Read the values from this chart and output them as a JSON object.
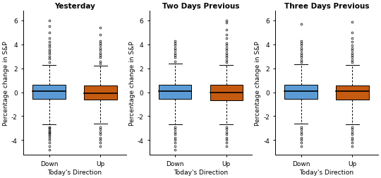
{
  "titles": [
    "Yesterday",
    "Two Days Previous",
    "Three Days Previous"
  ],
  "xlabel": "Today's Direction",
  "ylabel": "Percentage change in S&P",
  "categories": [
    "Down",
    "Up"
  ],
  "colors": [
    "#5B9BD5",
    "#C55A11"
  ],
  "ylim": [
    -5.2,
    6.8
  ],
  "yticks": [
    -4,
    -2,
    0,
    2,
    4,
    6
  ],
  "panels": [
    {
      "down": {
        "median": 0.1,
        "q1": -0.55,
        "q3": 0.65,
        "whisker_low": -2.65,
        "whisker_high": 2.3,
        "outliers_low": [
          -4.8,
          -4.5,
          -4.2,
          -4.0,
          -3.8,
          -3.6,
          -3.5,
          -3.4,
          -3.3,
          -3.2,
          -3.1,
          -3.0,
          -2.9
        ],
        "outliers_high": [
          2.5,
          2.8,
          3.0,
          3.2,
          3.4,
          3.6,
          3.8,
          4.0,
          4.2,
          4.5,
          5.0,
          5.5,
          6.0
        ]
      },
      "up": {
        "median": -0.1,
        "q1": -0.6,
        "q3": 0.55,
        "whisker_low": -2.6,
        "whisker_high": 2.2,
        "outliers_low": [
          -4.5,
          -4.2,
          -4.0,
          -3.8,
          -3.5,
          -3.3,
          -3.1,
          -2.9
        ],
        "outliers_high": [
          2.4,
          2.6,
          2.9,
          3.1,
          3.3,
          3.5,
          3.7,
          3.9,
          4.1,
          4.3,
          4.8,
          5.4
        ]
      }
    },
    {
      "down": {
        "median": 0.1,
        "q1": -0.55,
        "q3": 0.65,
        "whisker_low": -2.65,
        "whisker_high": 2.4,
        "outliers_low": [
          -4.8,
          -4.5,
          -4.2,
          -4.0,
          -3.8,
          -3.5,
          -3.3,
          -3.1,
          -2.9
        ],
        "outliers_high": [
          2.6,
          2.9,
          3.1,
          3.3,
          3.5,
          3.7,
          3.9,
          4.1,
          4.3
        ]
      },
      "up": {
        "median": 0.0,
        "q1": -0.65,
        "q3": 0.6,
        "whisker_low": -2.7,
        "whisker_high": 2.3,
        "outliers_low": [
          -4.5,
          -4.2,
          -4.0,
          -3.8,
          -3.5,
          -3.3,
          -3.1,
          -2.9
        ],
        "outliers_high": [
          2.5,
          2.7,
          2.9,
          3.1,
          3.3,
          3.5,
          3.7,
          3.9,
          4.1,
          4.5,
          4.8,
          5.2,
          5.8,
          6.0
        ]
      }
    },
    {
      "down": {
        "median": 0.1,
        "q1": -0.55,
        "q3": 0.65,
        "whisker_low": -2.6,
        "whisker_high": 2.35,
        "outliers_low": [
          -4.5,
          -4.2,
          -4.0,
          -3.8,
          -3.5,
          -3.3,
          -3.1,
          -2.9
        ],
        "outliers_high": [
          2.5,
          2.7,
          2.9,
          3.1,
          3.3,
          3.5,
          3.7,
          3.9,
          4.1,
          4.3,
          5.7
        ]
      },
      "up": {
        "median": 0.1,
        "q1": -0.6,
        "q3": 0.55,
        "whisker_low": -2.65,
        "whisker_high": 2.3,
        "outliers_low": [
          -4.5,
          -4.2,
          -4.0,
          -3.8,
          -3.5,
          -3.3,
          -3.1,
          -2.9
        ],
        "outliers_high": [
          2.5,
          2.7,
          2.9,
          3.1,
          3.3,
          3.5,
          3.7,
          3.9,
          4.2,
          4.5,
          5.0,
          5.9
        ]
      }
    }
  ]
}
